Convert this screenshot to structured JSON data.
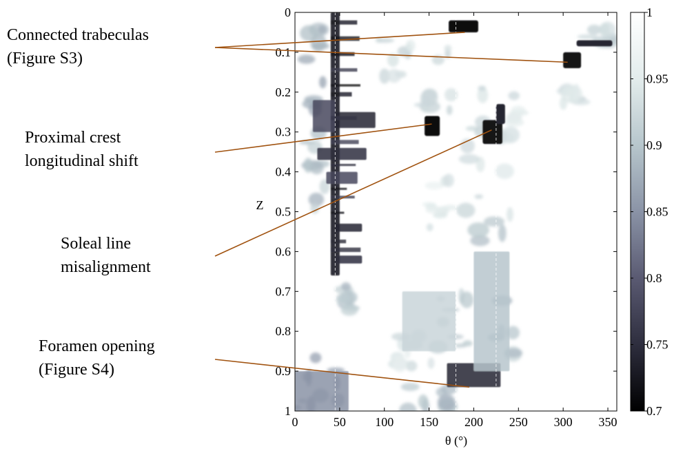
{
  "chart_data": {
    "type": "heatmap",
    "title": "",
    "xlabel": "θ (°)",
    "ylabel": "Z",
    "xlim": [
      0,
      360
    ],
    "ylim": [
      0,
      1
    ],
    "y_inverted": true,
    "xticks": [
      0,
      50,
      100,
      150,
      200,
      250,
      300,
      350
    ],
    "yticks": [
      0,
      0.1,
      0.2,
      0.3,
      0.4,
      0.5,
      0.6,
      0.7,
      0.8,
      0.9,
      1
    ],
    "colorbar": {
      "min": 0.7,
      "max": 1,
      "ticks": [
        0.7,
        0.75,
        0.8,
        0.85,
        0.9,
        0.95,
        1
      ],
      "colors": [
        "#000000",
        "#2e2e3e",
        "#5a5a72",
        "#8a93a6",
        "#b7c6cc",
        "#e3ecec",
        "#ffffff"
      ]
    },
    "grid": false,
    "dashed_guides_theta": [
      45,
      180,
      225
    ],
    "features": [
      {
        "theta": [
          40,
          50
        ],
        "z": [
          0,
          0.66
        ],
        "value": 0.72
      },
      {
        "theta": [
          20,
          45
        ],
        "z": [
          0.22,
          0.3
        ],
        "value": 0.78
      },
      {
        "theta": [
          45,
          90
        ],
        "z": [
          0.25,
          0.29
        ],
        "value": 0.74
      },
      {
        "theta": [
          25,
          80
        ],
        "z": [
          0.34,
          0.37
        ],
        "value": 0.75
      },
      {
        "theta": [
          35,
          70
        ],
        "z": [
          0.4,
          0.43
        ],
        "value": 0.78
      },
      {
        "theta": [
          45,
          75
        ],
        "z": [
          0.53,
          0.55
        ],
        "value": 0.74
      },
      {
        "theta": [
          45,
          75
        ],
        "z": [
          0.61,
          0.63
        ],
        "value": 0.75
      },
      {
        "theta": [
          170,
          230
        ],
        "z": [
          0.88,
          0.94
        ],
        "value": 0.74
      },
      {
        "theta": [
          0,
          60
        ],
        "z": [
          0.9,
          1
        ],
        "value": 0.85
      },
      {
        "theta": [
          200,
          240
        ],
        "z": [
          0.6,
          0.9
        ],
        "value": 0.9
      },
      {
        "theta": [
          120,
          180
        ],
        "z": [
          0.7,
          0.85
        ],
        "value": 0.92
      }
    ],
    "annotations": [
      {
        "lines": [
          "Connected trabeculas",
          "(Figure S3)"
        ],
        "targets": [
          {
            "theta": 190,
            "z": 0.05
          },
          {
            "theta": 305,
            "z": 0.125
          }
        ]
      },
      {
        "lines": [
          "Proximal crest",
          "longitudinal shift"
        ],
        "targets": [
          {
            "theta": 153,
            "z": 0.28
          }
        ]
      },
      {
        "lines": [
          "Soleal line",
          "misalignment"
        ],
        "targets": [
          {
            "theta": 220,
            "z": 0.295
          }
        ]
      },
      {
        "lines": [
          "Foramen opening",
          "(Figure S4)"
        ],
        "targets": [
          {
            "theta": 195,
            "z": 0.94
          }
        ]
      }
    ]
  }
}
